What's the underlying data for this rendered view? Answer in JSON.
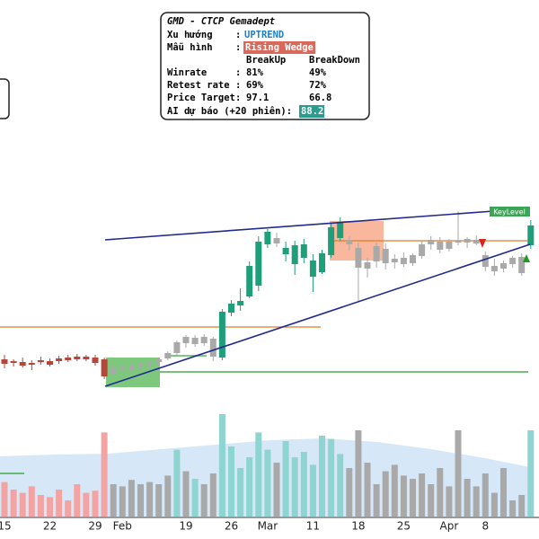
{
  "chart_data": {
    "type": "candlestick",
    "categories": [
      "15",
      null,
      null,
      null,
      null,
      "22",
      null,
      null,
      null,
      null,
      "29",
      null,
      null,
      "Feb",
      null,
      null,
      null,
      null,
      null,
      null,
      "19",
      null,
      null,
      null,
      null,
      "26",
      null,
      null,
      null,
      "Mar",
      null,
      null,
      null,
      null,
      "11",
      null,
      null,
      null,
      null,
      "18",
      null,
      null,
      null,
      null,
      "25",
      null,
      null,
      null,
      null,
      "Apr",
      null,
      null,
      null,
      "8",
      null,
      null,
      null,
      null,
      null
    ],
    "open": [
      20,
      19.2,
      19.4,
      18.8,
      19.4,
      19.6,
      19.6,
      20.4,
      20,
      20.6,
      20.4,
      20,
      17,
      18.2,
      17.8,
      18.4,
      18.8,
      19.4,
      20.2,
      21.4,
      23.6,
      24.8,
      23.6,
      24.6,
      20.4,
      30.4,
      32,
      34,
      36.4,
      45.6,
      47,
      44.8,
      45.4,
      42.6,
      42,
      39.4,
      43.2,
      47,
      46.6,
      44.8,
      40.2,
      41.8,
      44.6,
      41.6,
      42.6,
      41.4,
      43,
      45.6,
      46.2,
      44.6,
      46.4,
      46,
      46.6,
      43.2,
      40.8,
      40.2,
      41.2,
      42.8,
      45.4
    ],
    "high": [
      21,
      20,
      20.4,
      19.8,
      20.6,
      20.2,
      20.8,
      21,
      21.2,
      21,
      21,
      20.4,
      18.6,
      19,
      18.8,
      19.4,
      19.6,
      20.4,
      21.8,
      24.2,
      25.4,
      25.4,
      25.6,
      25,
      31.2,
      33.2,
      35.8,
      41.8,
      47.4,
      49,
      48.2,
      46.2,
      46.4,
      46.8,
      43.4,
      44.4,
      50.2,
      51.6,
      47.4,
      46,
      42.6,
      46,
      45.8,
      43.4,
      43.8,
      43.6,
      46.4,
      47.4,
      47.2,
      46.8,
      53,
      47.2,
      47.6,
      44,
      42.4,
      42,
      43,
      43.6,
      51
    ],
    "low": [
      18,
      18.4,
      18.2,
      17.6,
      18.8,
      18.4,
      19,
      19.4,
      19.6,
      19.6,
      18.6,
      15.6,
      16.6,
      17.2,
      17.4,
      17.6,
      18,
      18.6,
      19.8,
      21,
      22.6,
      22.8,
      23,
      19.6,
      19.8,
      29.6,
      30.8,
      33.6,
      35.2,
      44.8,
      45,
      41.8,
      38.8,
      41.4,
      35,
      39,
      42.6,
      46.4,
      44.2,
      33,
      38.2,
      40.4,
      40,
      40.2,
      40.6,
      40.8,
      42.4,
      44.4,
      43.6,
      44,
      45.4,
      44.8,
      45.4,
      39.6,
      38.6,
      39.4,
      40.4,
      38.6,
      44.6
    ],
    "close": [
      19,
      19.6,
      18.6,
      19.2,
      19.8,
      18.8,
      20.2,
      19.8,
      20.6,
      20,
      19.2,
      16.2,
      18,
      17.6,
      18.4,
      18.8,
      19.2,
      20,
      21.4,
      23.8,
      25,
      23.4,
      25,
      20.6,
      30.6,
      32.4,
      33,
      40.8,
      46.2,
      48.4,
      45.8,
      43.4,
      41.2,
      45.6,
      38.4,
      43.6,
      49.4,
      50.6,
      45.6,
      40.4,
      41.6,
      45.2,
      41.4,
      42.4,
      41.2,
      43.2,
      45.6,
      46.6,
      44.4,
      46.2,
      46,
      46.8,
      45.8,
      40.6,
      39.6,
      41.4,
      42.6,
      39.2,
      49.8
    ],
    "colors": [
      "#b5473a",
      "#b5473a",
      "#b5473a",
      "#b5473a",
      "#b5473a",
      "#b5473a",
      "#b5473a",
      "#b5473a",
      "#b5473a",
      "#b5473a",
      "#b5473a",
      "#b5473a",
      "#a9a9a9",
      "#a9a9a9",
      "#a9a9a9",
      "#a9a9a9",
      "#a9a9a9",
      "#a9a9a9",
      "#a9a9a9",
      "#a9a9a9",
      "#a9a9a9",
      "#a9a9a9",
      "#a9a9a9",
      "#a9a9a9",
      "#1f9e7a",
      "#1f9e7a",
      "#1f9e7a",
      "#1f9e7a",
      "#1f9e7a",
      "#1f9e7a",
      "#a9a9a9",
      "#1f9e7a",
      "#1f9e7a",
      "#1f9e7a",
      "#1f9e7a",
      "#1f9e7a",
      "#1f9e7a",
      "#1f9e7a",
      "#a9a9a9",
      "#a9a9a9",
      "#a9a9a9",
      "#a9a9a9",
      "#a9a9a9",
      "#a9a9a9",
      "#a9a9a9",
      "#a9a9a9",
      "#a9a9a9",
      "#a9a9a9",
      "#a9a9a9",
      "#a9a9a9",
      "#a9a9a9",
      "#a9a9a9",
      "#a9a9a9",
      "#a9a9a9",
      "#a9a9a9",
      "#a9a9a9",
      "#a9a9a9",
      "#a9a9a9",
      "#1f9e7a"
    ],
    "ylim": [
      8,
      60
    ],
    "volume": [
      32,
      25,
      22,
      28,
      20,
      18,
      25,
      15,
      30,
      22,
      24,
      78,
      30,
      28,
      34,
      30,
      32,
      30,
      38,
      62,
      42,
      35,
      30,
      40,
      95,
      65,
      45,
      55,
      78,
      62,
      50,
      70,
      55,
      60,
      48,
      75,
      72,
      58,
      45,
      80,
      50,
      30,
      42,
      48,
      38,
      35,
      40,
      30,
      45,
      28,
      80,
      35,
      28,
      40,
      22,
      45,
      15,
      20,
      80
    ],
    "volume_colors": [
      "#f4a3a3",
      "#f4a3a3",
      "#f4a3a3",
      "#f4a3a3",
      "#f4a3a3",
      "#f4a3a3",
      "#f4a3a3",
      "#f4a3a3",
      "#f4a3a3",
      "#f4a3a3",
      "#f4a3a3",
      "#f4a3a3",
      "#a9a9a9",
      "#a9a9a9",
      "#a9a9a9",
      "#a9a9a9",
      "#a9a9a9",
      "#a9a9a9",
      "#a9a9a9",
      "#8ed4d0",
      "#a9a9a9",
      "#8ed4d0",
      "#a9a9a9",
      "#a9a9a9",
      "#8ed4d0",
      "#8ed4d0",
      "#8ed4d0",
      "#8ed4d0",
      "#8ed4d0",
      "#8ed4d0",
      "#a9a9a9",
      "#8ed4d0",
      "#8ed4d0",
      "#8ed4d0",
      "#8ed4d0",
      "#8ed4d0",
      "#8ed4d0",
      "#8ed4d0",
      "#a9a9a9",
      "#a9a9a9",
      "#a9a9a9",
      "#a9a9a9",
      "#a9a9a9",
      "#a9a9a9",
      "#a9a9a9",
      "#a9a9a9",
      "#a9a9a9",
      "#a9a9a9",
      "#a9a9a9",
      "#a9a9a9",
      "#a9a9a9",
      "#a9a9a9",
      "#a9a9a9",
      "#a9a9a9",
      "#a9a9a9",
      "#a9a9a9",
      "#a9a9a9",
      "#a9a9a9",
      "#8ed4d0"
    ],
    "volume_lim": [
      0,
      100
    ],
    "key_level": "KeyLevel"
  },
  "info": {
    "title": "GMD - CTCP Gemadept",
    "sep": ":",
    "trend_label": "Xu hướng",
    "trend_value": "UPTREND",
    "pattern_label": "Mẫu hình",
    "pattern_value": "Rising Wedge",
    "col_up": "BreakUp",
    "col_down": "BreakDown",
    "rows": [
      [
        "Winrate",
        "81%",
        "49%"
      ],
      [
        "Retest rate",
        "69%",
        "72%"
      ],
      [
        "Price Target",
        "97.1",
        "66.8"
      ]
    ],
    "ai_label": "AI dự báo (+20 phiên):",
    "ai_value": "88.2"
  }
}
